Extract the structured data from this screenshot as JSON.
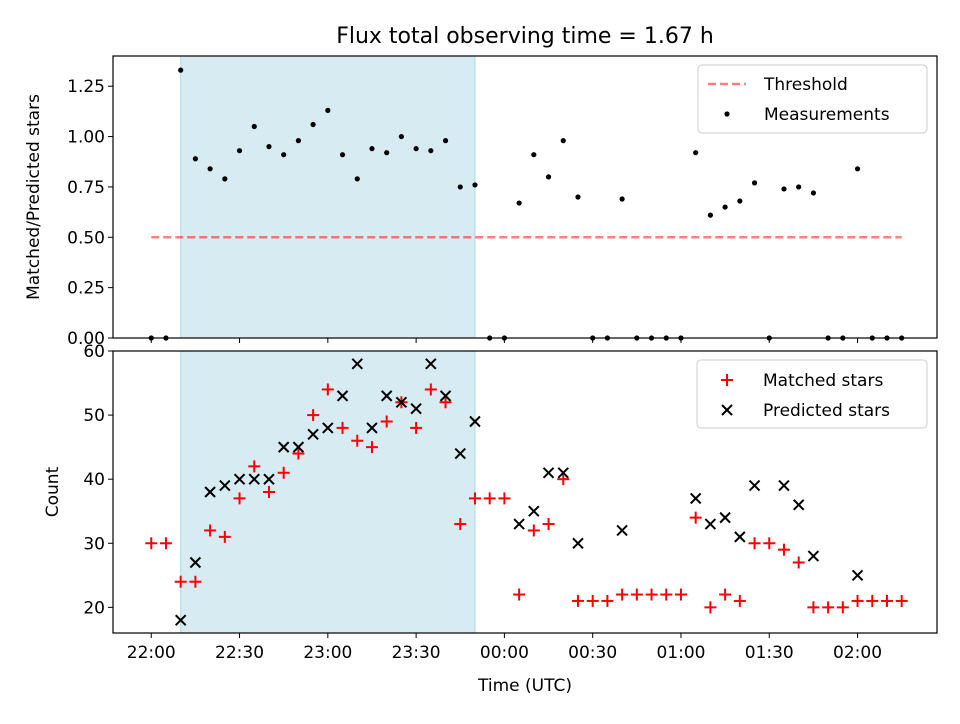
{
  "title": "Flux total observing time = 1.67 h",
  "colors": {
    "shade": "#add8e6",
    "threshold": "#ff0000",
    "measurement": "#000000",
    "matched": "#ff0000",
    "predicted": "#000000"
  },
  "chart_data": [
    {
      "type": "scatter",
      "ylabel": "Matched/Predicted stars",
      "ylim": [
        0,
        1.4
      ],
      "yticks": [
        "0.00",
        "0.25",
        "0.50",
        "0.75",
        "1.00",
        "1.25"
      ],
      "xlim_minutes": [
        -13,
        267
      ],
      "legend_position": "upper right",
      "shaded_interval": [
        "22:10",
        "23:50"
      ],
      "threshold": {
        "name": "Threshold",
        "value": 0.5,
        "x_from": "22:00",
        "x_to": "02:15"
      },
      "series": [
        {
          "name": "Measurements",
          "points": [
            [
              "22:00",
              0
            ],
            [
              "22:05",
              0
            ],
            [
              "22:10",
              1.33
            ],
            [
              "22:15",
              0.89
            ],
            [
              "22:20",
              0.84
            ],
            [
              "22:25",
              0.79
            ],
            [
              "22:30",
              0.93
            ],
            [
              "22:35",
              1.05
            ],
            [
              "22:40",
              0.95
            ],
            [
              "22:45",
              0.91
            ],
            [
              "22:50",
              0.98
            ],
            [
              "22:55",
              1.06
            ],
            [
              "23:00",
              1.13
            ],
            [
              "23:05",
              0.91
            ],
            [
              "23:10",
              0.79
            ],
            [
              "23:15",
              0.94
            ],
            [
              "23:20",
              0.92
            ],
            [
              "23:25",
              1.0
            ],
            [
              "23:30",
              0.94
            ],
            [
              "23:35",
              0.93
            ],
            [
              "23:40",
              0.98
            ],
            [
              "23:45",
              0.75
            ],
            [
              "23:50",
              0.76
            ],
            [
              "23:55",
              0
            ],
            [
              "00:00",
              0
            ],
            [
              "00:05",
              0.67
            ],
            [
              "00:10",
              0.91
            ],
            [
              "00:15",
              0.8
            ],
            [
              "00:20",
              0.98
            ],
            [
              "00:25",
              0.7
            ],
            [
              "00:30",
              0
            ],
            [
              "00:35",
              0
            ],
            [
              "00:40",
              0.69
            ],
            [
              "00:45",
              0
            ],
            [
              "00:50",
              0
            ],
            [
              "00:55",
              0
            ],
            [
              "01:00",
              0
            ],
            [
              "01:05",
              0.92
            ],
            [
              "01:10",
              0.61
            ],
            [
              "01:15",
              0.65
            ],
            [
              "01:20",
              0.68
            ],
            [
              "01:25",
              0.77
            ],
            [
              "01:30",
              0
            ],
            [
              "01:35",
              0.74
            ],
            [
              "01:40",
              0.75
            ],
            [
              "01:45",
              0.72
            ],
            [
              "01:50",
              0
            ],
            [
              "01:55",
              0
            ],
            [
              "02:00",
              0.84
            ],
            [
              "02:05",
              0
            ],
            [
              "02:10",
              0
            ],
            [
              "02:15",
              0
            ]
          ]
        }
      ]
    },
    {
      "type": "scatter",
      "xlabel": "Time (UTC)",
      "ylabel": "Count",
      "ylim": [
        16,
        60
      ],
      "yticks": [
        "20",
        "30",
        "40",
        "50",
        "60"
      ],
      "xticks": [
        "22:00",
        "22:30",
        "23:00",
        "23:30",
        "00:00",
        "00:30",
        "01:00",
        "01:30",
        "02:00"
      ],
      "xlim_minutes": [
        -13,
        267
      ],
      "legend_position": "upper right",
      "shaded_interval": [
        "22:10",
        "23:50"
      ],
      "series": [
        {
          "name": "Matched stars",
          "marker": "+",
          "points": [
            [
              "22:00",
              30
            ],
            [
              "22:05",
              30
            ],
            [
              "22:10",
              24
            ],
            [
              "22:15",
              24
            ],
            [
              "22:20",
              32
            ],
            [
              "22:25",
              31
            ],
            [
              "22:30",
              37
            ],
            [
              "22:35",
              42
            ],
            [
              "22:40",
              38
            ],
            [
              "22:45",
              41
            ],
            [
              "22:50",
              44
            ],
            [
              "22:55",
              50
            ],
            [
              "23:00",
              54
            ],
            [
              "23:05",
              48
            ],
            [
              "23:10",
              46
            ],
            [
              "23:15",
              45
            ],
            [
              "23:20",
              49
            ],
            [
              "23:25",
              52
            ],
            [
              "23:30",
              48
            ],
            [
              "23:35",
              54
            ],
            [
              "23:40",
              52
            ],
            [
              "23:45",
              33
            ],
            [
              "23:50",
              37
            ],
            [
              "23:55",
              37
            ],
            [
              "00:00",
              37
            ],
            [
              "00:05",
              22
            ],
            [
              "00:10",
              32
            ],
            [
              "00:15",
              33
            ],
            [
              "00:20",
              40
            ],
            [
              "00:25",
              21
            ],
            [
              "00:30",
              21
            ],
            [
              "00:35",
              21
            ],
            [
              "00:40",
              22
            ],
            [
              "00:45",
              22
            ],
            [
              "00:50",
              22
            ],
            [
              "00:55",
              22
            ],
            [
              "01:00",
              22
            ],
            [
              "01:05",
              34
            ],
            [
              "01:10",
              20
            ],
            [
              "01:15",
              22
            ],
            [
              "01:20",
              21
            ],
            [
              "01:25",
              30
            ],
            [
              "01:30",
              30
            ],
            [
              "01:35",
              29
            ],
            [
              "01:40",
              27
            ],
            [
              "01:45",
              20
            ],
            [
              "01:50",
              20
            ],
            [
              "01:55",
              20
            ],
            [
              "02:00",
              21
            ],
            [
              "02:05",
              21
            ],
            [
              "02:10",
              21
            ],
            [
              "02:15",
              21
            ]
          ]
        },
        {
          "name": "Predicted stars",
          "marker": "x",
          "points": [
            [
              "22:10",
              18
            ],
            [
              "22:15",
              27
            ],
            [
              "22:20",
              38
            ],
            [
              "22:25",
              39
            ],
            [
              "22:30",
              40
            ],
            [
              "22:35",
              40
            ],
            [
              "22:40",
              40
            ],
            [
              "22:45",
              45
            ],
            [
              "22:50",
              45
            ],
            [
              "22:55",
              47
            ],
            [
              "23:00",
              48
            ],
            [
              "23:05",
              53
            ],
            [
              "23:10",
              58
            ],
            [
              "23:15",
              48
            ],
            [
              "23:20",
              53
            ],
            [
              "23:25",
              52
            ],
            [
              "23:30",
              51
            ],
            [
              "23:35",
              58
            ],
            [
              "23:40",
              53
            ],
            [
              "23:45",
              44
            ],
            [
              "23:50",
              49
            ],
            [
              "00:05",
              33
            ],
            [
              "00:10",
              35
            ],
            [
              "00:15",
              41
            ],
            [
              "00:20",
              41
            ],
            [
              "00:25",
              30
            ],
            [
              "00:40",
              32
            ],
            [
              "01:05",
              37
            ],
            [
              "01:10",
              33
            ],
            [
              "01:15",
              34
            ],
            [
              "01:20",
              31
            ],
            [
              "01:25",
              39
            ],
            [
              "01:35",
              39
            ],
            [
              "01:40",
              36
            ],
            [
              "01:45",
              28
            ],
            [
              "02:00",
              25
            ]
          ]
        }
      ]
    }
  ]
}
